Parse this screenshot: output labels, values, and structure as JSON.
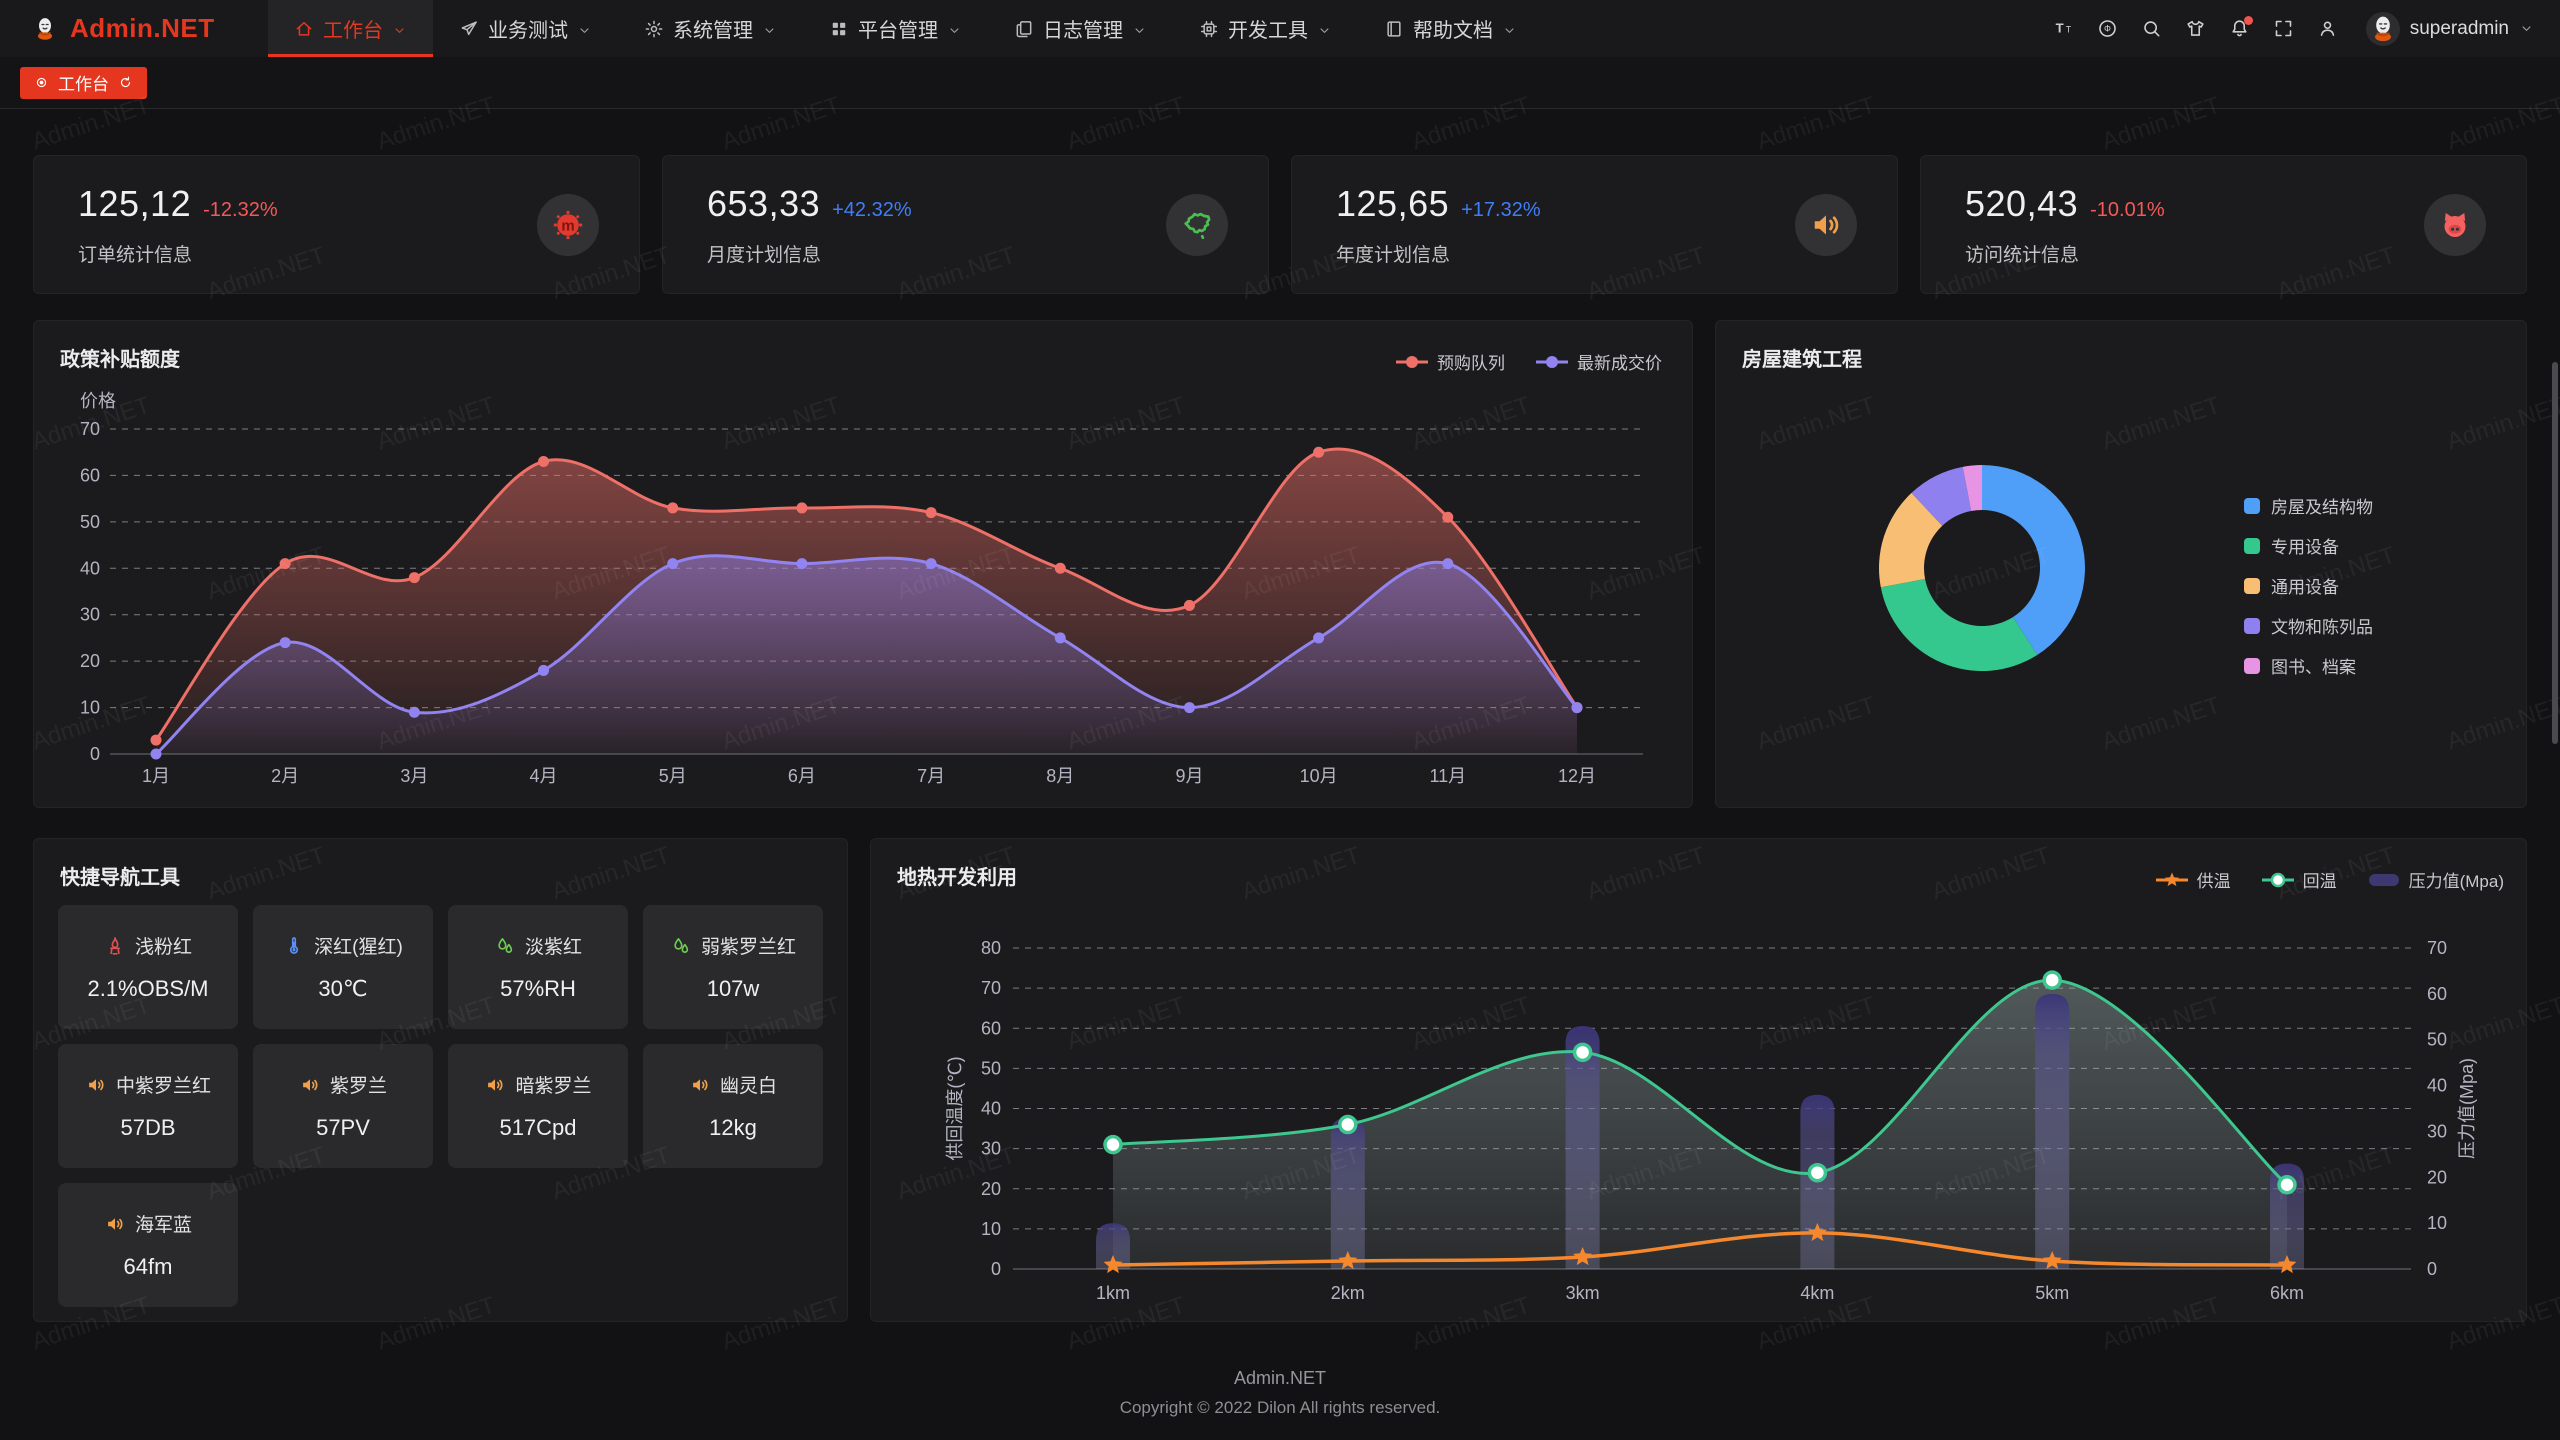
{
  "app": {
    "name": "Admin.NET"
  },
  "watermark": {
    "text": "Admin.NET"
  },
  "colors": {
    "accent": "#e5371f",
    "delta_up": "#3f7ef7",
    "delta_down": "#f35959",
    "panel_bg": "#1b1b1d",
    "page_bg": "#121214"
  },
  "header": {
    "logo_text": "Admin.NET",
    "menus": [
      {
        "label": "工作台",
        "icon": "home-icon",
        "active": true
      },
      {
        "label": "业务测试",
        "icon": "send-icon",
        "active": false
      },
      {
        "label": "系统管理",
        "icon": "gear-icon",
        "active": false
      },
      {
        "label": "平台管理",
        "icon": "grid-icon",
        "active": false
      },
      {
        "label": "日志管理",
        "icon": "log-icon",
        "active": false
      },
      {
        "label": "开发工具",
        "icon": "cpu-icon",
        "active": false
      },
      {
        "label": "帮助文档",
        "icon": "book-icon",
        "active": false
      }
    ],
    "right_icons": [
      {
        "name": "font-size-icon"
      },
      {
        "name": "language-icon"
      },
      {
        "name": "search-icon"
      },
      {
        "name": "theme-icon"
      },
      {
        "name": "notification-icon",
        "badge": true
      },
      {
        "name": "fullscreen-icon"
      },
      {
        "name": "profile-icon"
      }
    ],
    "user": {
      "name": "superadmin"
    }
  },
  "tabbar": {
    "active_tab": "工作台"
  },
  "stat_cards": [
    {
      "value": "125,12",
      "delta": "-12.32%",
      "trend": "down",
      "label": "订单统计信息",
      "icon": "material-logo-icon"
    },
    {
      "value": "653,33",
      "delta": "+42.32%",
      "trend": "up",
      "label": "月度计划信息",
      "icon": "china-map-icon"
    },
    {
      "value": "125,65",
      "delta": "+17.32%",
      "trend": "up",
      "label": "年度计划信息",
      "icon": "speaker-icon"
    },
    {
      "value": "520,43",
      "delta": "-10.01%",
      "trend": "down",
      "label": "访问统计信息",
      "icon": "pig-icon"
    }
  ],
  "panels": {
    "policy": {
      "title": "政策补贴额度"
    },
    "housing": {
      "title": "房屋建筑工程"
    },
    "quicknav": {
      "title": "快捷导航工具",
      "cards": [
        {
          "icon": "fire-icon",
          "icon_color": "#e05252",
          "title": "浅粉红",
          "value": "2.1%OBS/M"
        },
        {
          "icon": "thermometer-icon",
          "icon_color": "#5b8ff5",
          "title": "深红(猩红)",
          "value": "30℃"
        },
        {
          "icon": "humidity-icon",
          "icon_color": "#6fce53",
          "title": "淡紫红",
          "value": "57%RH"
        },
        {
          "icon": "humidity-icon",
          "icon_color": "#6fce53",
          "title": "弱紫罗兰红",
          "value": "107w"
        },
        {
          "icon": "speaker-icon",
          "icon_color": "#f0a04a",
          "title": "中紫罗兰红",
          "value": "57DB"
        },
        {
          "icon": "speaker-icon",
          "icon_color": "#f0a04a",
          "title": "紫罗兰",
          "value": "57PV"
        },
        {
          "icon": "speaker-icon",
          "icon_color": "#f0a04a",
          "title": "暗紫罗兰",
          "value": "517Cpd"
        },
        {
          "icon": "speaker-icon",
          "icon_color": "#f0a04a",
          "title": "幽灵白",
          "value": "12kg"
        },
        {
          "icon": "speaker-icon",
          "icon_color": "#f0a04a",
          "title": "海军蓝",
          "value": "64fm"
        }
      ]
    },
    "geothermal": {
      "title": "地热开发利用"
    }
  },
  "chart_data": [
    {
      "id": "policy",
      "type": "line",
      "title": "政策补贴额度",
      "ylabel": "价格",
      "ylim": [
        0,
        70
      ],
      "ytick_step": 10,
      "grid": "dashed-horizontal",
      "legend_position": "top-right",
      "categories": [
        "1月",
        "2月",
        "3月",
        "4月",
        "5月",
        "6月",
        "7月",
        "8月",
        "9月",
        "10月",
        "11月",
        "12月"
      ],
      "series": [
        {
          "name": "预购队列",
          "color": "#ee7068",
          "values": [
            3,
            41,
            38,
            63,
            53,
            53,
            52,
            40,
            32,
            65,
            51,
            10
          ]
        },
        {
          "name": "最新成交价",
          "color": "#9183f0",
          "values": [
            0,
            24,
            9,
            18,
            41,
            41,
            41,
            25,
            10,
            25,
            41,
            10
          ]
        }
      ]
    },
    {
      "id": "housing",
      "type": "pie",
      "title": "房屋建筑工程",
      "donut": true,
      "legend_position": "right",
      "labels": [
        "房屋及结构物",
        "专用设备",
        "通用设备",
        "文物和陈列品",
        "图书、档案"
      ],
      "values": [
        41,
        31,
        16,
        9,
        3
      ],
      "colors": [
        "#4f9ef7",
        "#35c88e",
        "#f8bf74",
        "#8f80f0",
        "#e694e3"
      ]
    },
    {
      "id": "geothermal",
      "type": "mixed",
      "title": "地热开发利用",
      "categories": [
        "1km",
        "2km",
        "3km",
        "4km",
        "5km",
        "6km"
      ],
      "ylabel_left": "供回温度(℃)",
      "ylim_left": [
        0,
        80
      ],
      "ylabel_right": "压力值(Mpa)",
      "ylim_right": [
        0,
        70
      ],
      "grid": "dashed-horizontal",
      "legend_position": "top-right",
      "series": [
        {
          "name": "供温",
          "type": "line",
          "axis": "left",
          "marker": "star",
          "color": "#f5872c",
          "values": [
            1,
            2,
            3,
            9,
            2,
            1
          ]
        },
        {
          "name": "回温",
          "type": "line",
          "axis": "left",
          "marker": "circle",
          "area": true,
          "color": "#3ec78f",
          "values": [
            31,
            36,
            54,
            24,
            72,
            21
          ]
        },
        {
          "name": "压力值(Mpa)",
          "type": "bar",
          "axis": "right",
          "color": "#534d9e",
          "values": [
            10,
            33,
            53,
            38,
            60,
            23
          ]
        }
      ]
    }
  ],
  "footer": {
    "line1": "Admin.NET",
    "line2": "Copyright © 2022 Dilon All rights reserved."
  }
}
